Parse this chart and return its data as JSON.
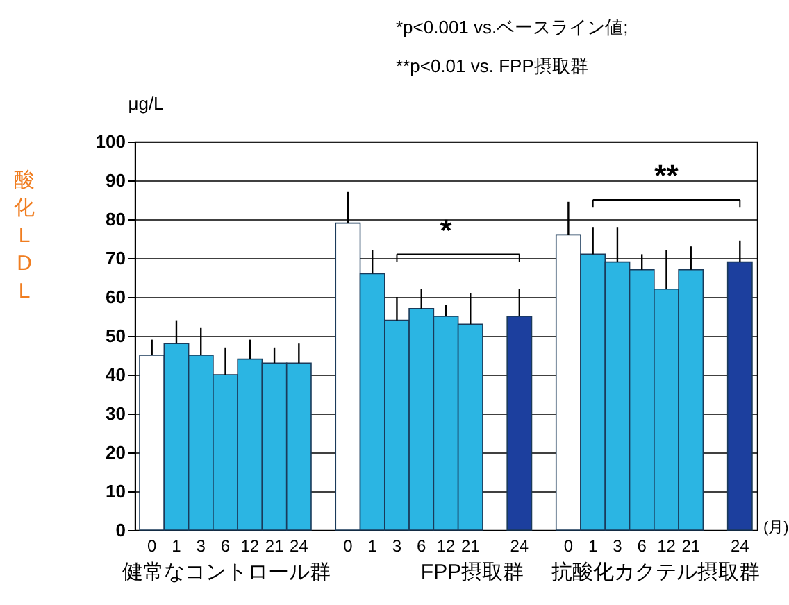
{
  "chart_data": {
    "type": "bar",
    "ylabel": "酸化LDL",
    "xlabel": "(月)",
    "categories": [
      "0",
      "1",
      "3",
      "6",
      "12",
      "21",
      "24",
      null,
      "0",
      "1",
      "3",
      "6",
      "12",
      "21",
      null,
      "24",
      null,
      "0",
      "1",
      "3",
      "6",
      "12",
      "21",
      null,
      "24"
    ],
    "series": [
      {
        "color": "#ffffff",
        "values": [
          45,
          null,
          null,
          null,
          null,
          null,
          null,
          null,
          79,
          null,
          null,
          null,
          null,
          null,
          null,
          null,
          null,
          76,
          null,
          null,
          null,
          null,
          null,
          null,
          null
        ],
        "errors": [
          [
            45,
            49
          ],
          null,
          null,
          null,
          null,
          null,
          null,
          null,
          [
            79,
            87
          ],
          null,
          null,
          null,
          null,
          null,
          null,
          null,
          null,
          [
            76,
            84.5
          ],
          null,
          null,
          null,
          null,
          null,
          null,
          null
        ]
      },
      {
        "color": "#2bb5e3",
        "values": [
          null,
          48,
          45,
          40,
          44,
          43,
          43,
          null,
          null,
          66,
          54,
          57,
          55,
          53,
          null,
          null,
          null,
          null,
          71,
          69,
          67,
          62,
          67,
          null,
          null
        ],
        "errors": [
          null,
          [
            48,
            54
          ],
          [
            45,
            52
          ],
          [
            40,
            47
          ],
          [
            44,
            49
          ],
          [
            43,
            47
          ],
          [
            43,
            48
          ],
          null,
          null,
          [
            66,
            72
          ],
          [
            54,
            60
          ],
          [
            57,
            62
          ],
          [
            55,
            58
          ],
          [
            53,
            61
          ],
          null,
          null,
          null,
          null,
          [
            71,
            78
          ],
          [
            69,
            78
          ],
          [
            67,
            71
          ],
          [
            62,
            72
          ],
          [
            67,
            73
          ],
          null,
          null
        ]
      },
      {
        "color": "#1c3f9e",
        "values": [
          null,
          null,
          null,
          null,
          null,
          null,
          null,
          null,
          null,
          null,
          null,
          null,
          null,
          null,
          null,
          55,
          null,
          null,
          null,
          null,
          null,
          null,
          null,
          null,
          69
        ],
        "errors": [
          null,
          null,
          null,
          null,
          null,
          null,
          null,
          null,
          null,
          null,
          null,
          null,
          null,
          null,
          null,
          [
            55,
            62
          ],
          null,
          null,
          null,
          null,
          null,
          null,
          null,
          null,
          [
            69,
            74.5
          ]
        ]
      }
    ],
    "ylim": [
      0,
      100
    ],
    "yticks": [
      0,
      10,
      20,
      30,
      40,
      50,
      60,
      70,
      80,
      90,
      100
    ],
    "grid": "y",
    "annotations": [
      "*p<0.001 vs.ベースライン値;",
      "**p<0.01 vs. FPP摂取群",
      "μg/L",
      "健常なコントロール群",
      "FPP摂取群",
      "抗酸化カクテル摂取群",
      "*",
      "**"
    ]
  }
}
